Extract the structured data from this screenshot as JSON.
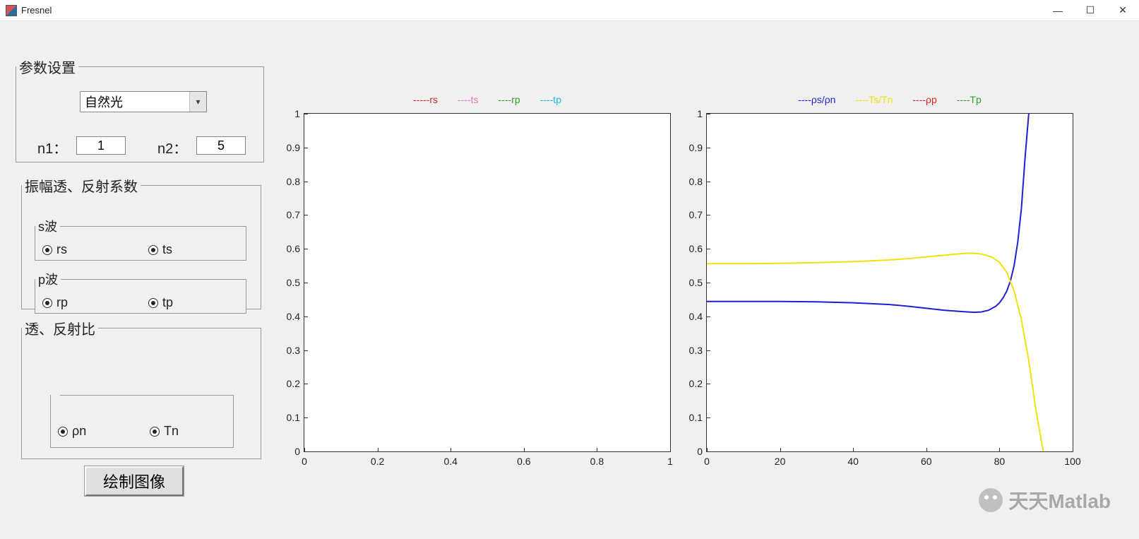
{
  "window": {
    "title": "Fresnel",
    "minimize": "—",
    "maximize": "☐",
    "close": "✕"
  },
  "params": {
    "legend": "参数设置",
    "light_type": "自然光",
    "n1_label": "n1：",
    "n1_value": "1",
    "n2_label": "n2：",
    "n2_value": "5"
  },
  "amp": {
    "legend": "振幅透、反射系数",
    "s_legend": "s波",
    "p_legend": "p波",
    "rs": "rs",
    "ts": "ts",
    "rp": "rp",
    "tp": "tp"
  },
  "ratio": {
    "legend": "透、反射比",
    "rho_n": "ρn",
    "Tn": "Tn"
  },
  "button": {
    "plot": "绘制图像"
  },
  "chart_left": {
    "type": "line",
    "xlim": [
      0,
      1
    ],
    "ylim": [
      0,
      1
    ],
    "xtick_step": 0.2,
    "ytick_step": 0.1,
    "background_color": "#ffffff",
    "border_color": "#333333",
    "label_fontsize": 14,
    "legend": [
      {
        "label": "-----rs",
        "color": "#d62728"
      },
      {
        "label": "----ts",
        "color": "#e377c2"
      },
      {
        "label": "----rp",
        "color": "#2ca02c"
      },
      {
        "label": "----tp",
        "color": "#17becf"
      }
    ],
    "series": []
  },
  "chart_right": {
    "type": "line",
    "xlim": [
      0,
      100
    ],
    "ylim": [
      0,
      1
    ],
    "xtick_step": 20,
    "ytick_step": 0.1,
    "background_color": "#ffffff",
    "border_color": "#333333",
    "label_fontsize": 14,
    "legend": [
      {
        "label": "----ρs/ρn",
        "color": "#1f1fd6"
      },
      {
        "label": "----Ts/Tn",
        "color": "#f2e20c"
      },
      {
        "label": "----ρp",
        "color": "#d62728"
      },
      {
        "label": "----Tp",
        "color": "#2ca02c"
      }
    ],
    "series": [
      {
        "name": "ρs/ρn",
        "color": "#1f1fd6",
        "width": 2,
        "points": [
          [
            0,
            0.444
          ],
          [
            10,
            0.444
          ],
          [
            20,
            0.444
          ],
          [
            30,
            0.443
          ],
          [
            40,
            0.44
          ],
          [
            50,
            0.435
          ],
          [
            55,
            0.43
          ],
          [
            60,
            0.424
          ],
          [
            65,
            0.418
          ],
          [
            70,
            0.414
          ],
          [
            73,
            0.412
          ],
          [
            75,
            0.413
          ],
          [
            77,
            0.418
          ],
          [
            79,
            0.43
          ],
          [
            80,
            0.44
          ],
          [
            81,
            0.455
          ],
          [
            82,
            0.475
          ],
          [
            83,
            0.505
          ],
          [
            84,
            0.55
          ],
          [
            85,
            0.62
          ],
          [
            86,
            0.72
          ],
          [
            87,
            0.87
          ],
          [
            88,
            1.0
          ]
        ]
      },
      {
        "name": "Ts/Tn",
        "color": "#f2e20c",
        "width": 2,
        "points": [
          [
            0,
            0.556
          ],
          [
            10,
            0.556
          ],
          [
            20,
            0.557
          ],
          [
            30,
            0.559
          ],
          [
            40,
            0.562
          ],
          [
            50,
            0.567
          ],
          [
            55,
            0.571
          ],
          [
            60,
            0.576
          ],
          [
            65,
            0.581
          ],
          [
            68,
            0.584
          ],
          [
            70,
            0.586
          ],
          [
            72,
            0.587
          ],
          [
            74,
            0.586
          ],
          [
            76,
            0.582
          ],
          [
            78,
            0.575
          ],
          [
            80,
            0.56
          ],
          [
            82,
            0.53
          ],
          [
            84,
            0.475
          ],
          [
            86,
            0.39
          ],
          [
            88,
            0.27
          ],
          [
            90,
            0.12
          ],
          [
            92,
            0.0
          ]
        ]
      }
    ]
  },
  "watermark": "天天Matlab"
}
